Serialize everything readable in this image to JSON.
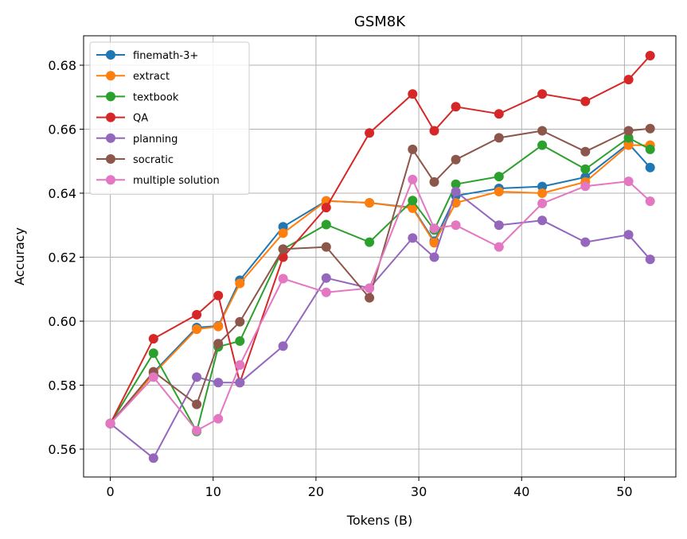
{
  "chart_data": {
    "type": "line",
    "title": "GSM8K",
    "xlabel": "Tokens (B)",
    "ylabel": "Accuracy",
    "xlim": [
      -2.6,
      55.0
    ],
    "ylim": [
      0.5513,
      0.6892
    ],
    "xticks": [
      0,
      10,
      20,
      30,
      40,
      50
    ],
    "yticks": [
      0.56,
      0.58,
      0.6,
      0.62,
      0.64,
      0.66,
      0.68
    ],
    "xtick_labels": [
      "0",
      "10",
      "20",
      "30",
      "40",
      "50"
    ],
    "ytick_labels": [
      "0.56",
      "0.58",
      "0.60",
      "0.62",
      "0.64",
      "0.66",
      "0.68"
    ],
    "grid": true,
    "legend": "top-left",
    "series": [
      {
        "name": "finemath-3+",
        "color": "#1f77b4",
        "x": [
          0,
          4.2,
          8.4,
          10.5,
          12.6,
          16.8,
          21.0,
          25.2,
          29.4,
          31.5,
          33.6,
          37.8,
          42.0,
          46.2,
          50.4,
          52.5
        ],
        "y": [
          0.568,
          0.584,
          0.598,
          0.5985,
          0.6128,
          0.6295,
          0.6376,
          0.637,
          0.6355,
          0.625,
          0.6392,
          0.6415,
          0.6421,
          0.645,
          0.6555,
          0.648
        ]
      },
      {
        "name": "extract",
        "color": "#ff7f0e",
        "x": [
          0,
          4.2,
          8.4,
          10.5,
          12.6,
          16.8,
          21.0,
          25.2,
          29.4,
          31.5,
          33.6,
          37.8,
          42.0,
          46.2,
          50.4,
          52.5
        ],
        "y": [
          0.568,
          0.5835,
          0.5975,
          0.5983,
          0.6118,
          0.6275,
          0.6376,
          0.637,
          0.6353,
          0.6245,
          0.637,
          0.6405,
          0.64,
          0.6435,
          0.655,
          0.655
        ]
      },
      {
        "name": "textbook",
        "color": "#2ca02c",
        "x": [
          0,
          4.2,
          8.4,
          10.5,
          12.6,
          16.8,
          21.0,
          25.2,
          29.4,
          31.5,
          33.6,
          37.8,
          42.0,
          46.2,
          50.4,
          52.5
        ],
        "y": [
          0.568,
          0.59,
          0.5655,
          0.592,
          0.5938,
          0.6225,
          0.6302,
          0.6247,
          0.6377,
          0.6285,
          0.6428,
          0.6452,
          0.655,
          0.6475,
          0.6573,
          0.6537
        ]
      },
      {
        "name": "QA",
        "color": "#d62728",
        "x": [
          0,
          4.2,
          8.4,
          10.5,
          12.6,
          16.8,
          21.0,
          25.2,
          29.4,
          31.5,
          33.6,
          37.8,
          42.0,
          46.2,
          50.4,
          52.5
        ],
        "y": [
          0.568,
          0.5945,
          0.602,
          0.608,
          0.5808,
          0.62,
          0.6355,
          0.6588,
          0.671,
          0.6595,
          0.667,
          0.6648,
          0.671,
          0.6687,
          0.6755,
          0.683
        ]
      },
      {
        "name": "planning",
        "color": "#9467bd",
        "x": [
          0,
          4.2,
          8.4,
          10.5,
          12.6,
          16.8,
          21.0,
          25.2,
          29.4,
          31.5,
          33.6,
          37.8,
          42.0,
          46.2,
          50.4,
          52.5
        ],
        "y": [
          0.568,
          0.5572,
          0.5825,
          0.5808,
          0.5808,
          0.5922,
          0.6135,
          0.6103,
          0.626,
          0.62,
          0.6405,
          0.63,
          0.6315,
          0.6247,
          0.627,
          0.6193
        ]
      },
      {
        "name": "socratic",
        "color": "#8c564b",
        "x": [
          0,
          4.2,
          8.4,
          10.5,
          12.6,
          16.8,
          21.0,
          25.2,
          29.4,
          31.5,
          33.6,
          37.8,
          42.0,
          46.2,
          50.4,
          52.5
        ],
        "y": [
          0.568,
          0.5842,
          0.574,
          0.593,
          0.5998,
          0.6225,
          0.6232,
          0.6073,
          0.6537,
          0.6435,
          0.6505,
          0.6573,
          0.6595,
          0.653,
          0.6595,
          0.6602
        ]
      },
      {
        "name": "multiple solution",
        "color": "#e377c2",
        "x": [
          0,
          4.2,
          8.4,
          10.5,
          12.6,
          16.8,
          21.0,
          25.2,
          29.4,
          31.5,
          33.6,
          37.8,
          42.0,
          46.2,
          50.4,
          52.5
        ],
        "y": [
          0.568,
          0.5825,
          0.5658,
          0.5695,
          0.5863,
          0.6133,
          0.609,
          0.6103,
          0.6443,
          0.629,
          0.63,
          0.6232,
          0.6368,
          0.6422,
          0.6437,
          0.6375
        ]
      }
    ]
  }
}
